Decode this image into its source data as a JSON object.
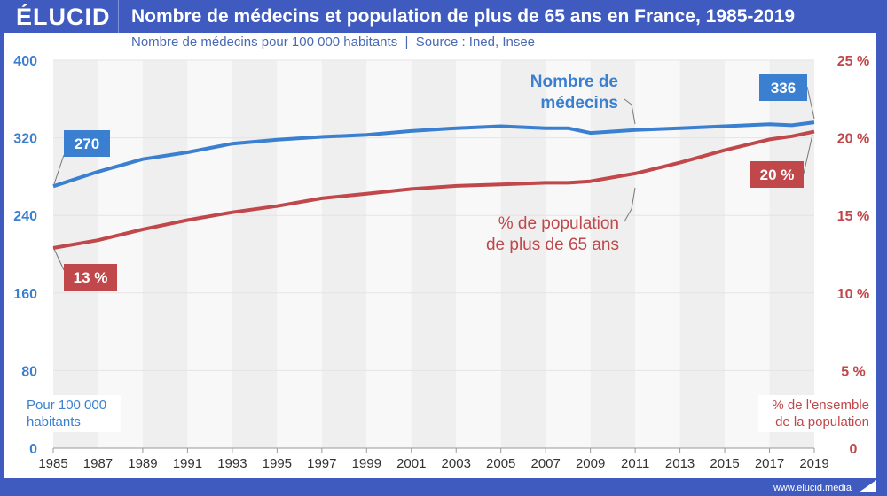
{
  "header": {
    "logo": "ÉLUCID",
    "title": "Nombre de médecins et population de plus de 65 ans en France, 1985-2019",
    "subtitle": "Nombre de médecins pour 100 000 habitants  |  Source : Ined, Insee"
  },
  "footer": {
    "url": "www.elucid.media"
  },
  "colors": {
    "blue": "#3a7fd0",
    "red": "#c0474a",
    "frame": "#3f5bbf"
  },
  "chart_data": {
    "type": "line",
    "title": "Nombre de médecins et population de plus de 65 ans en France, 1985-2019",
    "x": [
      1985,
      1987,
      1989,
      1991,
      1993,
      1995,
      1997,
      1999,
      2001,
      2003,
      2005,
      2007,
      2008,
      2009,
      2011,
      2013,
      2015,
      2017,
      2018,
      2019
    ],
    "series": [
      {
        "name": "Nombre de médecins",
        "axis": "left",
        "values": [
          270,
          285,
          298,
          305,
          314,
          318,
          321,
          323,
          327,
          330,
          332,
          330,
          330,
          325,
          328,
          330,
          332,
          334,
          333,
          336
        ]
      },
      {
        "name": "% de population de plus de 65 ans",
        "axis": "right",
        "values": [
          12.9,
          13.4,
          14.1,
          14.7,
          15.2,
          15.6,
          16.1,
          16.4,
          16.7,
          16.9,
          17.0,
          17.1,
          17.1,
          17.2,
          17.7,
          18.4,
          19.2,
          19.9,
          20.1,
          20.4
        ]
      }
    ],
    "x_ticks": [
      "1985",
      "1987",
      "1989",
      "1991",
      "1993",
      "1995",
      "1997",
      "1999",
      "2001",
      "2003",
      "2005",
      "2007",
      "2009",
      "2011",
      "2013",
      "2015",
      "2017",
      "2019"
    ],
    "y_left_ticks": [
      "0",
      "80",
      "160",
      "240",
      "320",
      "400"
    ],
    "y_right_ticks": [
      "0",
      "5 %",
      "10 %",
      "15 %",
      "20 %",
      "25 %"
    ],
    "ylim_left": [
      0,
      400
    ],
    "ylim_right": [
      0,
      25
    ],
    "ylabel_left": [
      "Pour 100 000",
      "habitants"
    ],
    "ylabel_right": [
      "% de l'ensemble",
      "de la population"
    ],
    "annotations": {
      "blue_start": "270",
      "blue_end": "336",
      "red_start": "13 %",
      "red_end": "20 %",
      "blue_label": [
        "Nombre de",
        "médecins"
      ],
      "red_label": [
        "% de population",
        "de plus de 65 ans"
      ]
    }
  }
}
